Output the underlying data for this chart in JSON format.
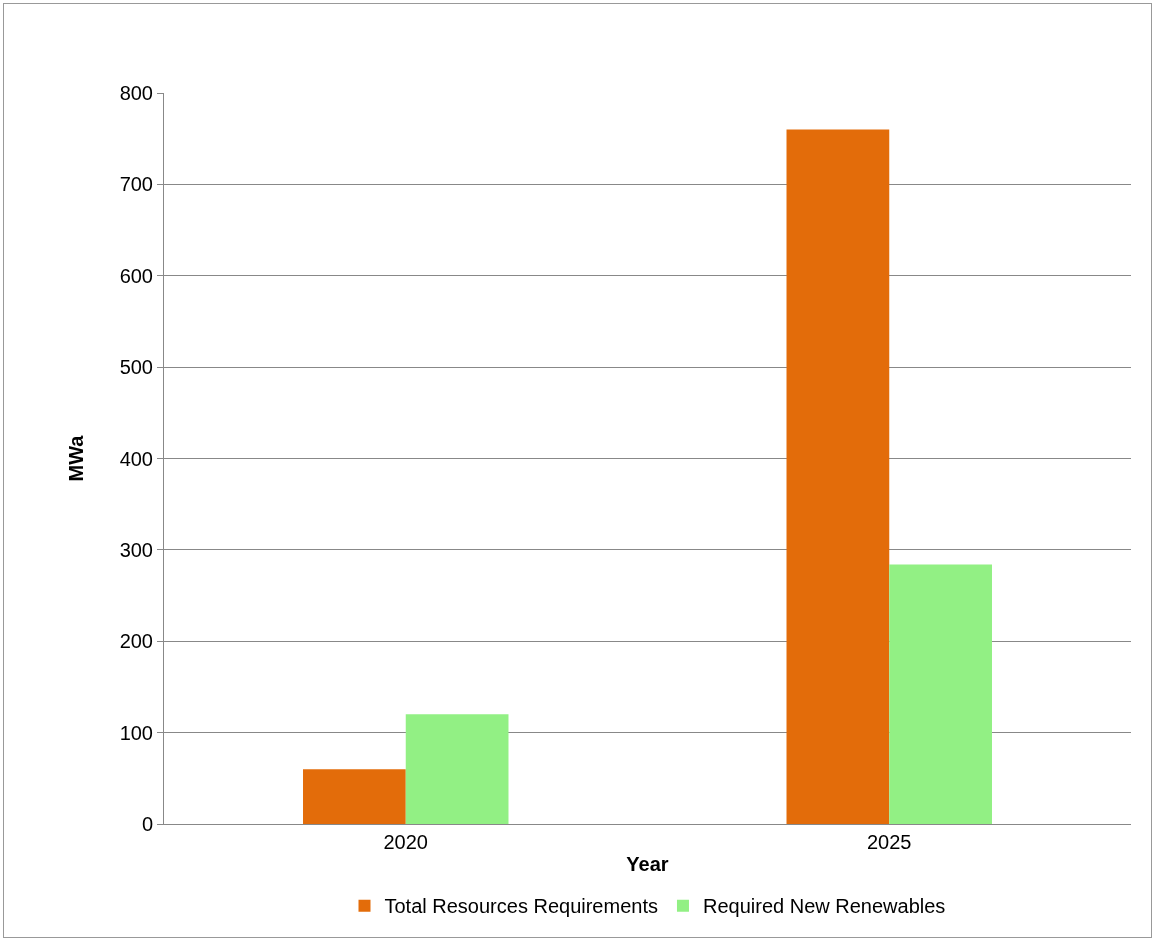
{
  "chart_data": {
    "type": "bar",
    "xlabel": "Year",
    "ylabel": "MWa",
    "categories": [
      "2020",
      "2025"
    ],
    "series": [
      {
        "name": "Total Resources Requirements",
        "color": "#e36c0a",
        "values": [
          60,
          760
        ]
      },
      {
        "name": "Required New Renewables",
        "color": "#92f084",
        "values": [
          120,
          284
        ]
      }
    ],
    "ylim": [
      0,
      800
    ],
    "yticks": [
      0,
      100,
      200,
      300,
      400,
      500,
      600,
      700,
      800
    ],
    "grid": "y",
    "legend": "bottom"
  }
}
